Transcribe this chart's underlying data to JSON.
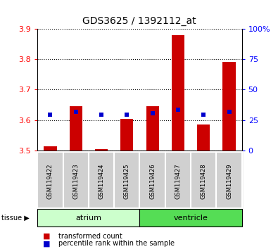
{
  "title": "GDS3625 / 1392112_at",
  "samples": [
    "GSM119422",
    "GSM119423",
    "GSM119424",
    "GSM119425",
    "GSM119426",
    "GSM119427",
    "GSM119428",
    "GSM119429"
  ],
  "red_values": [
    3.515,
    3.645,
    3.505,
    3.605,
    3.645,
    3.878,
    3.585,
    3.792
  ],
  "blue_values": [
    3.617,
    3.628,
    3.617,
    3.617,
    3.622,
    3.635,
    3.617,
    3.628
  ],
  "ymin": 3.5,
  "ymax": 3.9,
  "y2min": 0,
  "y2max": 100,
  "yticks": [
    3.5,
    3.6,
    3.7,
    3.8,
    3.9
  ],
  "y2ticks": [
    0,
    25,
    50,
    75,
    100
  ],
  "tissue_groups": [
    {
      "label": "atrium",
      "start": 0,
      "end": 4,
      "color": "#ccffcc"
    },
    {
      "label": "ventricle",
      "start": 4,
      "end": 8,
      "color": "#55dd55"
    }
  ],
  "bar_width": 0.5,
  "blue_marker_size": 5,
  "bar_color": "#cc0000",
  "blue_color": "#0000cc",
  "sample_bg": "#d0d0d0",
  "title_fontsize": 10,
  "tick_fontsize": 8,
  "label_fontsize": 6
}
